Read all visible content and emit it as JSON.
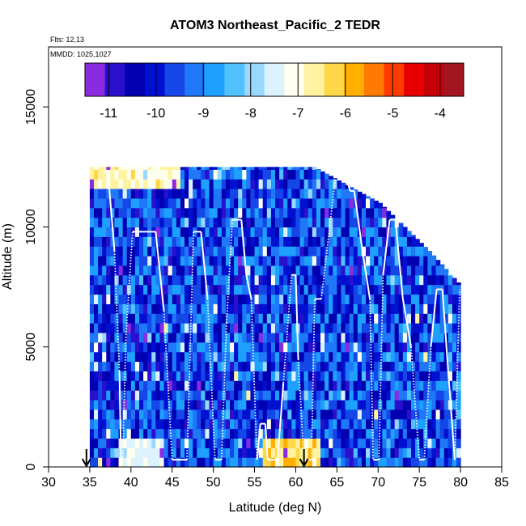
{
  "chart_data": {
    "type": "heatmap",
    "title": "ATOM3 Northeast_Pacific_2 TEDR",
    "flights_note": "Flts: 12,13",
    "date_note": "MMDD: 1025,1027",
    "xlabel": "Latitude (deg N)",
    "ylabel": "Altitude (m)",
    "xlim": [
      30,
      85
    ],
    "ylim": [
      0,
      17500
    ],
    "x_ticks": [
      "30",
      "35",
      "40",
      "45",
      "50",
      "55",
      "60",
      "65",
      "70",
      "75",
      "80",
      "85"
    ],
    "y_ticks": [
      "0",
      "5000",
      "10000",
      "15000"
    ],
    "colorbar": {
      "range": [
        -11.5,
        -3.5
      ],
      "tick_labels": [
        "-11",
        "-10",
        "-9",
        "-8",
        "-7",
        "-6",
        "-5",
        "-4"
      ],
      "colors": [
        "#8a2be2",
        "#2a10cc",
        "#0000b0",
        "#0010d0",
        "#1446e8",
        "#1e78f8",
        "#1ea0ff",
        "#50c0ff",
        "#9ad8ff",
        "#dcf2ff",
        "#ffffee",
        "#fff2a0",
        "#ffd84a",
        "#ffb000",
        "#ff7a00",
        "#ff3c00",
        "#e60000",
        "#c40008",
        "#a31520"
      ]
    },
    "heatmap": {
      "lat_range": [
        35,
        80
      ],
      "alt_band_top": [
        [
          35,
          12500
        ],
        [
          62,
          12500
        ],
        [
          70,
          11000
        ],
        [
          76,
          9000
        ],
        [
          80,
          7500
        ]
      ],
      "base_value_range": [
        -10.8,
        -8.5
      ],
      "value_note": "log10 TEDR, mostly -10 to -9 with lighter patches near -7 to -6.5 at low altitude around 56-63 N"
    },
    "flight_track": {
      "lat": [
        36.8,
        37.2,
        38.0,
        38.6,
        38.8,
        39.0,
        39.4,
        40.2,
        41.4,
        42.4,
        43.0,
        44.0,
        45.0,
        46.8,
        47.6,
        48.5,
        49.3,
        50.2,
        51.0,
        51.6,
        52.3,
        53.4,
        54.0,
        54.6,
        55.3,
        55.7,
        56.3,
        56.6,
        57.8,
        58.5,
        59.5,
        60.0,
        60.3,
        61.0,
        61.9,
        62.3,
        63.1,
        64.9,
        65.9,
        66.6,
        67.1,
        68.1,
        69.0,
        69.4,
        70.1,
        70.6,
        71.4,
        72.1,
        73.0,
        74.0,
        75.0,
        75.6,
        76.4,
        77.1,
        77.8,
        78.5,
        79.3,
        79.9
      ],
      "alt": [
        12300,
        12300,
        9000,
        4000,
        300,
        300,
        5500,
        9800,
        9800,
        9800,
        9800,
        6500,
        300,
        300,
        9800,
        9800,
        7000,
        300,
        300,
        6000,
        10300,
        10300,
        8000,
        7000,
        300,
        1800,
        1800,
        300,
        300,
        3500,
        8000,
        8000,
        4500,
        300,
        300,
        7000,
        7000,
        12300,
        12300,
        11500,
        11500,
        9000,
        7000,
        300,
        300,
        8000,
        10300,
        10300,
        7000,
        5000,
        300,
        300,
        5000,
        7400,
        7400,
        4000,
        300,
        7400
      ]
    },
    "markers": [
      {
        "label": "arrow",
        "lat": 34.6
      },
      {
        "label": "arrow",
        "lat": 61.0
      }
    ]
  }
}
